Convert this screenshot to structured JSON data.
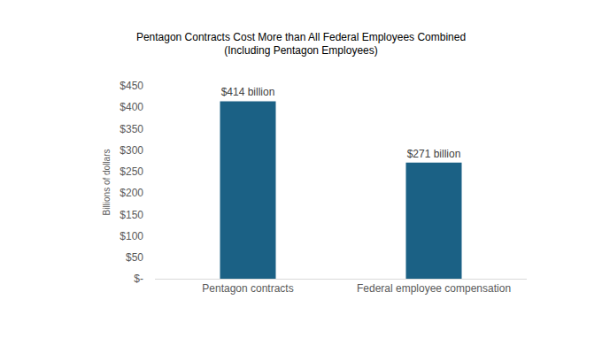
{
  "chart_data": {
    "type": "bar",
    "title": "Pentagon Contracts Cost More than All Federal Employees Combined",
    "subtitle": "(Including Pentagon Employees)",
    "y_label": "Billions of dollars",
    "categories": [
      "Pentagon contracts",
      "Federal employee compensation"
    ],
    "values": [
      414,
      271
    ],
    "value_labels": [
      "$414 billion",
      "$271 billion"
    ],
    "data_labels": true,
    "color": "#1b6185",
    "ylim": [
      0,
      450
    ],
    "yticks": [
      {
        "value": 0,
        "label": "$-"
      },
      {
        "value": 50,
        "label": "$50"
      },
      {
        "value": 100,
        "label": "$100"
      },
      {
        "value": 150,
        "label": "$150"
      },
      {
        "value": 200,
        "label": "$200"
      },
      {
        "value": 250,
        "label": "$250"
      },
      {
        "value": 300,
        "label": "$300"
      },
      {
        "value": 350,
        "label": "$350"
      },
      {
        "value": 400,
        "label": "$400"
      },
      {
        "value": 450,
        "label": "$450"
      }
    ],
    "grid": false
  }
}
